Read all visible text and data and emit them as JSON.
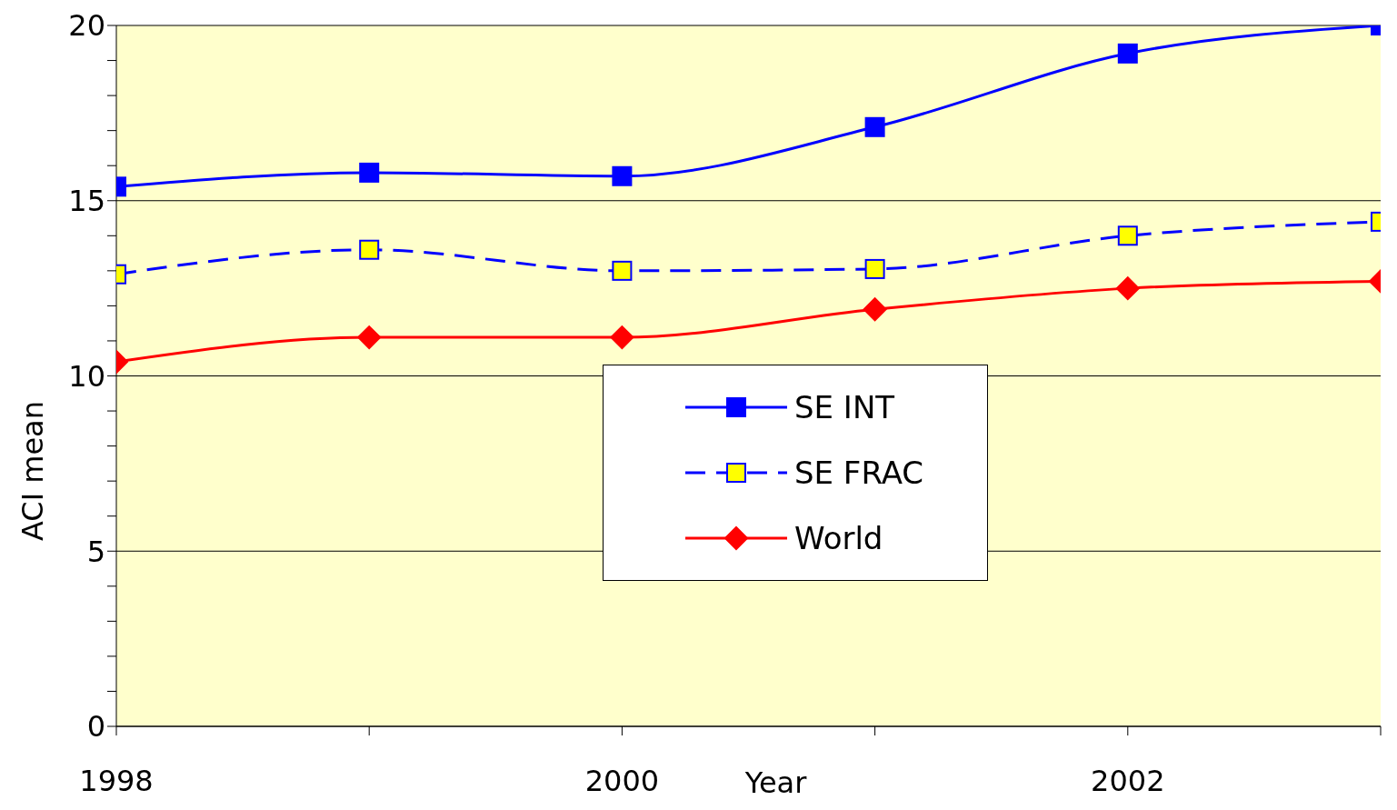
{
  "chart_data": {
    "type": "line",
    "xlabel": "Year",
    "ylabel": "ACI mean",
    "x": [
      1998,
      1999,
      2000,
      2001,
      2002,
      2003
    ],
    "xlim": [
      1998,
      2003
    ],
    "xticks": [
      1998,
      {
        "value": 1999,
        "label": null
      },
      2000,
      {
        "value": 2001,
        "label": null
      },
      2002,
      {
        "value": 2003,
        "label": null
      }
    ],
    "ylim": [
      0,
      20
    ],
    "yticks": [
      0,
      {
        "value": 1,
        "label": null
      },
      {
        "value": 2,
        "label": null
      },
      {
        "value": 3,
        "label": null
      },
      {
        "value": 4,
        "label": null
      },
      5,
      {
        "value": 6,
        "label": null
      },
      {
        "value": 7,
        "label": null
      },
      {
        "value": 8,
        "label": null
      },
      {
        "value": 9,
        "label": null
      },
      10,
      {
        "value": 11,
        "label": null
      },
      {
        "value": 12,
        "label": null
      },
      {
        "value": 13,
        "label": null
      },
      {
        "value": 14,
        "label": null
      },
      15,
      {
        "value": 16,
        "label": null
      },
      {
        "value": 17,
        "label": null
      },
      {
        "value": 18,
        "label": null
      },
      {
        "value": 19,
        "label": null
      },
      20
    ],
    "grid": "y",
    "legend": "center",
    "series": [
      {
        "name": "SE INT",
        "color": "#0000ff",
        "marker": "square",
        "line_style": "solid",
        "values": [
          15.4,
          15.8,
          15.7,
          17.1,
          19.2,
          20.0
        ]
      },
      {
        "name": "SE FRAC",
        "color": "#0000ff",
        "marker": "square",
        "colors": [
          "#ffff00",
          "#ffff00",
          "#ffff00",
          "#ffff00",
          "#ffff00",
          "#ffff00"
        ],
        "line_style": "dashed",
        "values": [
          12.9,
          13.6,
          13.0,
          13.05,
          14.0,
          14.4
        ]
      },
      {
        "name": "World",
        "color": "#ff0000",
        "marker": "diamond",
        "line_style": "solid",
        "values": [
          10.4,
          11.1,
          11.1,
          11.9,
          12.5,
          12.7
        ]
      }
    ]
  }
}
